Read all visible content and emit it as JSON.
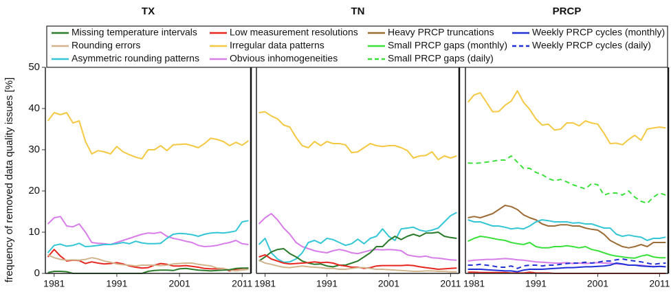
{
  "legend": [
    {
      "name": "Missing temperature intervals",
      "color": "#2a7a2a",
      "dash": false
    },
    {
      "name": "Low measurement resolutions",
      "color": "#e8261f",
      "dash": false
    },
    {
      "name": "Heavy PRCP truncations",
      "color": "#9c6b36",
      "dash": false
    },
    {
      "name": "Weekly PRCP cycles (monthly)",
      "color": "#1f2fd6",
      "dash": false
    },
    {
      "name": "Rounding errors",
      "color": "#d2b48c",
      "dash": false
    },
    {
      "name": "Irregular data patterns",
      "color": "#f5c842",
      "dash": false
    },
    {
      "name": "Small PRCP gaps (monthly)",
      "color": "#3ae03a",
      "dash": false
    },
    {
      "name": "Weekly PRCP cycles (daily)",
      "color": "#1f2fd6",
      "dash": true
    },
    {
      "name": "Asymmetric rounding patterns",
      "color": "#33c6d6",
      "dash": false
    },
    {
      "name": "Obvious inhomogeneities",
      "color": "#d77ce8",
      "dash": false
    },
    {
      "name": "Small PRCP gaps (daily)",
      "color": "#3ae03a",
      "dash": true
    }
  ],
  "chart_data": [
    {
      "type": "line",
      "title": "TX",
      "ylabel": "frequency of removed data quality issues [%]",
      "x": [
        1980,
        1981,
        1982,
        1983,
        1984,
        1985,
        1986,
        1987,
        1988,
        1989,
        1990,
        1991,
        1992,
        1993,
        1994,
        1995,
        1996,
        1997,
        1998,
        1999,
        2000,
        2001,
        2002,
        2003,
        2004,
        2005,
        2006,
        2007,
        2008,
        2009,
        2010,
        2011,
        2012
      ],
      "xlim": [
        1979.6,
        2012.4
      ],
      "xticks": [
        1981,
        1991,
        2001,
        2011
      ],
      "ylim": [
        0,
        50
      ],
      "yticks": [
        0,
        10,
        20,
        30,
        40,
        50
      ],
      "series": [
        {
          "name": "Irregular data patterns",
          "color": "#f5c842",
          "values": [
            37,
            39,
            38.5,
            39,
            36.5,
            37,
            32,
            29,
            29.8,
            29.5,
            29,
            30.8,
            29.5,
            28.8,
            28.2,
            27.8,
            30,
            30,
            31,
            29.8,
            31.2,
            31.3,
            31.4,
            31,
            30.5,
            31.5,
            32.8,
            32.5,
            32,
            31,
            31.8,
            31.1,
            32.2
          ]
        },
        {
          "name": "Obvious inhomogeneities",
          "color": "#d77ce8",
          "values": [
            12,
            13.5,
            13.8,
            11.5,
            11.3,
            12,
            10,
            7.5,
            7.3,
            7.2,
            7,
            7.5,
            8,
            8.5,
            9,
            9.5,
            9.8,
            9.7,
            10,
            9,
            8.5,
            8.2,
            7.8,
            7.5,
            6.8,
            6.5,
            6.6,
            6.8,
            7.2,
            7.5,
            8,
            7.2,
            7
          ]
        },
        {
          "name": "Asymmetric rounding patterns",
          "color": "#33c6d6",
          "values": [
            5,
            6.8,
            7.1,
            6.6,
            6.8,
            7.3,
            6.5,
            6.6,
            6.8,
            7,
            7,
            7.2,
            7.5,
            7.2,
            7.8,
            7.4,
            7.2,
            7.2,
            7.3,
            8.5,
            9.5,
            9.7,
            9.6,
            9.4,
            9,
            9.5,
            9.8,
            9.9,
            9.8,
            10,
            10.3,
            12.5,
            12.8
          ]
        },
        {
          "name": "Low measurement resolutions",
          "color": "#e8261f",
          "values": [
            4,
            5.8,
            4.2,
            3,
            3.2,
            3.1,
            2.4,
            2.8,
            2.5,
            2.3,
            2.4,
            2.6,
            2.3,
            1.8,
            1.5,
            1.3,
            1.4,
            2,
            2.4,
            2.2,
            1.8,
            1.8,
            1.9,
            1.7,
            1.5,
            1.2,
            1.1,
            1.1,
            1.2,
            0.6,
            1,
            1.2,
            1.3
          ]
        },
        {
          "name": "Rounding errors",
          "color": "#d2b48c",
          "values": [
            4.5,
            3.8,
            3.4,
            3.2,
            3.3,
            3.2,
            3.4,
            3.8,
            3.5,
            3,
            2.7,
            2.3,
            2.1,
            2,
            1.8,
            2,
            2,
            2,
            1.9,
            2,
            2.3,
            2.4,
            2.5,
            2.5,
            2.2,
            2,
            1.8,
            1.3,
            1.2,
            0.8,
            0.6,
            0.8,
            1
          ]
        },
        {
          "name": "Missing temperature intervals",
          "color": "#2a7a2a",
          "values": [
            0.2,
            0.5,
            0.5,
            0.4,
            0,
            0,
            0,
            0,
            0,
            0,
            0,
            0,
            0,
            0,
            0,
            0,
            0.5,
            0.7,
            0.8,
            0.8,
            0.7,
            1.1,
            1.2,
            1,
            0.8,
            0.7,
            0.6,
            0.7,
            0.8,
            0.9,
            1.2,
            1.3,
            1.3
          ]
        }
      ]
    },
    {
      "type": "line",
      "title": "TN",
      "x": [
        1980,
        1981,
        1982,
        1983,
        1984,
        1985,
        1986,
        1987,
        1988,
        1989,
        1990,
        1991,
        1992,
        1993,
        1994,
        1995,
        1996,
        1997,
        1998,
        1999,
        2000,
        2001,
        2002,
        2003,
        2004,
        2005,
        2006,
        2007,
        2008,
        2009,
        2010,
        2011,
        2012
      ],
      "xlim": [
        1979.6,
        2012.4
      ],
      "xticks": [
        1981,
        1991,
        2001,
        2011
      ],
      "ylim": [
        0,
        50
      ],
      "series": [
        {
          "name": "Irregular data patterns",
          "color": "#f5c842",
          "values": [
            39,
            39.2,
            38.2,
            37.5,
            36,
            35.5,
            33,
            31,
            30.5,
            32,
            31,
            32,
            31.5,
            31.5,
            31.2,
            29.3,
            29.5,
            30.5,
            31.5,
            31,
            30.8,
            31,
            31,
            30.5,
            29.8,
            28,
            28.5,
            28.6,
            29.5,
            27.6,
            28.5,
            28,
            28.5
          ]
        },
        {
          "name": "Obvious inhomogeneities",
          "color": "#d77ce8",
          "values": [
            12,
            13.5,
            14.5,
            13,
            11,
            9.5,
            7.5,
            6.5,
            6,
            5.5,
            5.2,
            5,
            5.5,
            5.8,
            5.5,
            5,
            4.8,
            5.2,
            5.6,
            5.8,
            5.7,
            5.8,
            5.7,
            5.5,
            4.5,
            4.2,
            4,
            4.2,
            3.8,
            3.7,
            3.5,
            3.3,
            3.2
          ]
        },
        {
          "name": "Asymmetric rounding patterns",
          "color": "#33c6d6",
          "values": [
            7,
            8.5,
            5,
            3.5,
            2.7,
            2.8,
            3.5,
            5,
            7.5,
            8,
            7.3,
            8.5,
            8.2,
            7.5,
            6.8,
            7.2,
            8.3,
            7.2,
            8.5,
            9,
            10.8,
            9,
            8,
            10.8,
            11,
            11.2,
            10.5,
            10.2,
            10.5,
            11,
            12.5,
            14,
            14.8
          ]
        },
        {
          "name": "Missing temperature intervals",
          "color": "#2a7a2a",
          "values": [
            3,
            4,
            5.2,
            5.8,
            6,
            4.8,
            4,
            3,
            2.5,
            2.2,
            2.3,
            1.8,
            1.6,
            2,
            2,
            2.5,
            3,
            4,
            5,
            6.5,
            6.5,
            8,
            9,
            8.2,
            9,
            9.5,
            9,
            9.8,
            9.8,
            10,
            9,
            8.7,
            8.5
          ]
        },
        {
          "name": "Low measurement resolutions",
          "color": "#e8261f",
          "values": [
            4,
            4.5,
            3.5,
            3,
            2.5,
            2.3,
            2.4,
            2.5,
            2.6,
            2.8,
            2.6,
            2.7,
            2.5,
            2,
            1.8,
            1.5,
            1.5,
            1.2,
            1.4,
            1.8,
            1.9,
            1.9,
            1.9,
            1.9,
            2,
            1.9,
            1.6,
            1.4,
            1.2,
            1,
            1.1,
            1.2,
            1.3
          ]
        },
        {
          "name": "Rounding errors",
          "color": "#d2b48c",
          "values": [
            3.2,
            2.5,
            2.2,
            1.8,
            1.5,
            1.4,
            1.6,
            1.8,
            1.6,
            1.5,
            1.4,
            1.2,
            1.2,
            1,
            1,
            1.2,
            1.4,
            1.4,
            1.2,
            1,
            1,
            0.9,
            0.8,
            0.7,
            0.6,
            0.5,
            0.5,
            0.6,
            0.6,
            0.5,
            0.5,
            0.4,
            0.4
          ]
        }
      ]
    },
    {
      "type": "line",
      "title": "PRCP",
      "x": [
        1980,
        1981,
        1982,
        1983,
        1984,
        1985,
        1986,
        1987,
        1988,
        1989,
        1990,
        1991,
        1992,
        1993,
        1994,
        1995,
        1996,
        1997,
        1998,
        1999,
        2000,
        2001,
        2002,
        2003,
        2004,
        2005,
        2006,
        2007,
        2008,
        2009,
        2010,
        2011,
        2012
      ],
      "xlim": [
        1979.6,
        2012.4
      ],
      "xticks": [
        1981,
        1991,
        2001,
        2011
      ],
      "ylim": [
        0,
        50
      ],
      "series": [
        {
          "name": "Irregular data patterns",
          "color": "#f5c842",
          "values": [
            41.5,
            43.3,
            43.8,
            41.5,
            39.2,
            39.3,
            40.8,
            41.8,
            44.3,
            41.5,
            39.8,
            37.5,
            36,
            36.2,
            34.8,
            35,
            36.5,
            36.5,
            35.8,
            37,
            36.5,
            36.2,
            34,
            31.5,
            31.6,
            31.2,
            32.5,
            33.5,
            32.3,
            35,
            35.3,
            35.5,
            35.3
          ]
        },
        {
          "name": "Small PRCP gaps (daily)",
          "color": "#3ae03a",
          "dash": true,
          "values": [
            26.8,
            26.7,
            26.8,
            27,
            27.2,
            27.5,
            27.5,
            28.5,
            27,
            25.5,
            25.5,
            24.5,
            24,
            23,
            22.5,
            22.8,
            22.2,
            21.5,
            21,
            20.5,
            21.8,
            21.5,
            19,
            19.5,
            19.5,
            19,
            20,
            18.5,
            17.5,
            17,
            18.5,
            19.5,
            19
          ]
        },
        {
          "name": "Heavy PRCP truncations",
          "color": "#9c6b36",
          "values": [
            13.5,
            13.8,
            13.5,
            14,
            14.5,
            15.5,
            16.5,
            16.2,
            15.5,
            14.2,
            13.5,
            13,
            12,
            11.5,
            11.5,
            11.8,
            11.8,
            11.5,
            11.5,
            11,
            10.7,
            10.5,
            9.5,
            8,
            7.2,
            6.5,
            6.2,
            6.5,
            7,
            6.5,
            7.5,
            7.5,
            7.5
          ]
        },
        {
          "name": "Asymmetric rounding patterns",
          "color": "#33c6d6",
          "values": [
            13,
            12.5,
            12.5,
            12,
            11.5,
            11.5,
            11.2,
            10.8,
            11,
            10.8,
            11.5,
            12.5,
            13,
            12.8,
            12.5,
            12.5,
            12.5,
            12.2,
            12.3,
            12,
            12,
            11.5,
            11,
            11,
            9.5,
            9,
            9.3,
            9,
            8.8,
            8,
            8.5,
            8.5,
            8.8
          ]
        },
        {
          "name": "Small PRCP gaps (monthly)",
          "color": "#3ae03a",
          "values": [
            7.8,
            8.5,
            9,
            8.8,
            8.5,
            8.2,
            8,
            7.5,
            7.2,
            7,
            7.5,
            6.5,
            6.2,
            6.2,
            6.5,
            6.5,
            6.7,
            6.5,
            6.2,
            6.5,
            5.8,
            5.5,
            5,
            4.5,
            4.2,
            4,
            3.8,
            3.7,
            4.2,
            4.5,
            4,
            3.8,
            3.8
          ]
        },
        {
          "name": "Obvious inhomogeneities",
          "color": "#d77ce8",
          "values": [
            3,
            3.2,
            3.3,
            3.4,
            3.4,
            3.5,
            3.6,
            3.5,
            3.3,
            3.2,
            3,
            2.8,
            2.7,
            2.6,
            2.5,
            2.5,
            2.6,
            2.4,
            2.5,
            2.4,
            2.5,
            2.6,
            2.5,
            2.5,
            2.3,
            2.2,
            2,
            2,
            2,
            1.8,
            1.7,
            1.7,
            1.6
          ]
        },
        {
          "name": "Weekly PRCP cycles (daily)",
          "color": "#1f2fd6",
          "dash": true,
          "values": [
            2,
            2,
            2.2,
            2,
            1.8,
            1.5,
            1.5,
            1.8,
            1.2,
            1.8,
            2,
            2,
            1.8,
            2,
            2,
            2.2,
            2.4,
            2.5,
            2.5,
            2.7,
            2.5,
            2.7,
            3,
            3,
            3.3,
            3.5,
            3.2,
            3,
            2.8,
            2.5,
            2.2,
            2.4,
            2.5
          ]
        },
        {
          "name": "Weekly PRCP cycles (monthly)",
          "color": "#1f2fd6",
          "values": [
            1,
            1,
            1,
            0.9,
            0.8,
            0.7,
            0.6,
            0.6,
            0.4,
            0.8,
            1,
            1,
            1,
            1.1,
            1.2,
            1.3,
            1.4,
            1.4,
            1.5,
            1.6,
            1.6,
            1.7,
            1.8,
            2,
            2.5,
            2.3,
            2,
            2,
            1.8,
            1.7,
            1.6,
            1.7,
            1.6
          ]
        },
        {
          "name": "Low measurement resolutions",
          "color": "#e8261f",
          "values": [
            0.3,
            0.3,
            0.2,
            0.2,
            0.2,
            0.2,
            0.2,
            0.1,
            0.1,
            0.1,
            0.3,
            0.1,
            0.1,
            0.1,
            0,
            0,
            0,
            0,
            0,
            0,
            0,
            0,
            0,
            0,
            0,
            0,
            0,
            0,
            0,
            0,
            0,
            0,
            0
          ]
        }
      ]
    }
  ]
}
